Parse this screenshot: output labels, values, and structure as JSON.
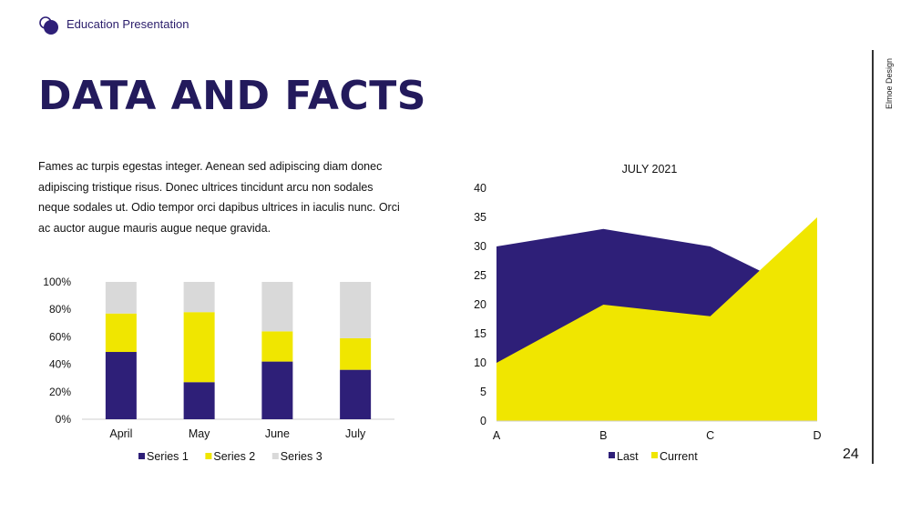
{
  "header": {
    "brand": "Education Presentation"
  },
  "title": "DATA AND FACTS",
  "body_text": "Fames ac turpis egestas integer. Aenean sed adipiscing diam donec adipiscing tristique risus. Donec ultrices tincidunt arcu non sodales neque sodales ut. Odio tempor orci dapibus ultrices in iaculis nunc. Orci ac auctor augue mauris augue neque gravida.",
  "side_label": "Elmoe Design",
  "page_number": "24",
  "colors": {
    "navy": "#2e1f78",
    "yellow": "#f0e600",
    "gray": "#d9d9d9"
  },
  "chart_data": [
    {
      "type": "bar",
      "stacked": "percent",
      "title": "",
      "categories": [
        "April",
        "May",
        "June",
        "July"
      ],
      "y_ticks": [
        "0%",
        "20%",
        "40%",
        "60%",
        "80%",
        "100%"
      ],
      "ylim": [
        0,
        100
      ],
      "series": [
        {
          "name": "Series 1",
          "color": "#2e1f78",
          "values": [
            49,
            27,
            42,
            36
          ]
        },
        {
          "name": "Series 2",
          "color": "#f0e600",
          "values": [
            28,
            51,
            22,
            23
          ]
        },
        {
          "name": "Series 3",
          "color": "#d9d9d9",
          "values": [
            23,
            22,
            36,
            41
          ]
        }
      ],
      "legend": "bottom"
    },
    {
      "type": "area",
      "title": "JULY 2021",
      "categories": [
        "A",
        "B",
        "C",
        "D"
      ],
      "y_ticks": [
        "0",
        "5",
        "10",
        "15",
        "20",
        "25",
        "30",
        "35",
        "40"
      ],
      "ylim": [
        0,
        40
      ],
      "series": [
        {
          "name": "Last",
          "color": "#2e1f78",
          "values": [
            30,
            33,
            30,
            21
          ]
        },
        {
          "name": "Current",
          "color": "#f0e600",
          "values": [
            10,
            20,
            18,
            35
          ]
        }
      ],
      "legend": "bottom"
    }
  ]
}
